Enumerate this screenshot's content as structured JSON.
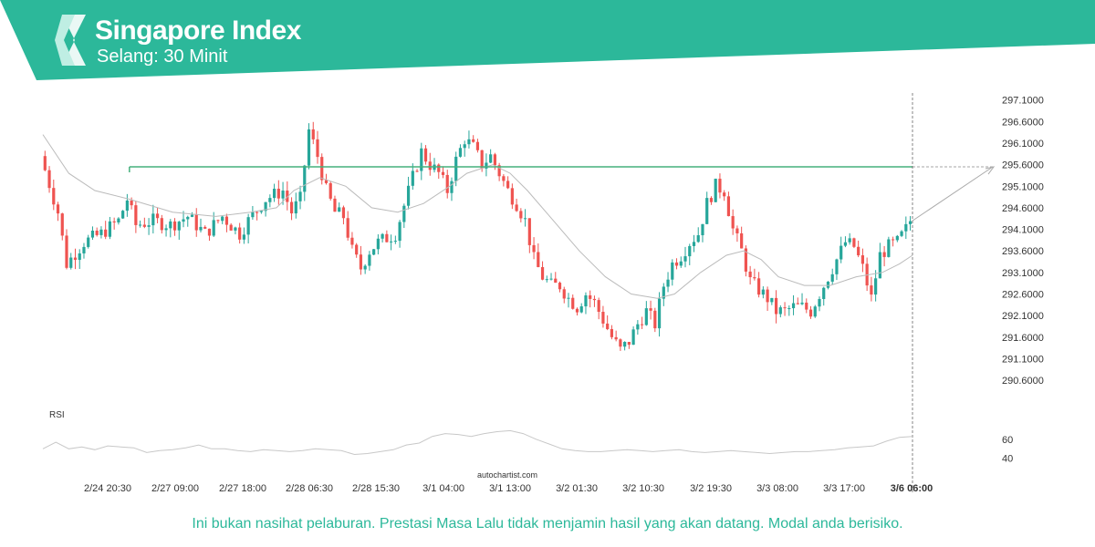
{
  "header": {
    "title": "Singapore Index",
    "subtitle": "Selang: 30 Minit",
    "brand_color": "#2cb89a",
    "logo_icon": "autochartist-s-logo-icon"
  },
  "chart_data": {
    "type": "candlestick",
    "price_panel": {
      "ylim": [
        290.2,
        297.2
      ],
      "yticks": [
        "297.1000",
        "296.6000",
        "296.1000",
        "295.6000",
        "295.1000",
        "294.6000",
        "294.1000",
        "293.6000",
        "293.1000",
        "292.6000",
        "292.1000",
        "291.6000",
        "291.1000",
        "290.6000"
      ],
      "resistance_level": 295.55,
      "up_color": "#26a69a",
      "down_color": "#ef5350",
      "forecast_target": 295.55
    },
    "rsi_panel": {
      "label": "RSI",
      "yticks": [
        "60",
        "40"
      ],
      "ylim": [
        33,
        79
      ]
    },
    "x_labels": [
      "2/24 20:30",
      "2/27 09:00",
      "2/27 18:00",
      "2/28 06:30",
      "2/28 15:30",
      "3/1 04:00",
      "3/1 13:00",
      "3/2 01:30",
      "3/2 10:30",
      "3/2 19:30",
      "3/3 08:00",
      "3/3 17:00",
      "3/6 06:00"
    ],
    "last_x_label": "3/6 06:00",
    "close_path": [
      [
        0,
        295.8
      ],
      [
        4,
        294.5
      ],
      [
        6,
        293.3
      ],
      [
        10,
        293.8
      ],
      [
        14,
        294.0
      ],
      [
        18,
        294.3
      ],
      [
        20,
        294.8
      ],
      [
        22,
        294.2
      ],
      [
        26,
        294.3
      ],
      [
        30,
        294.2
      ],
      [
        34,
        294.4
      ],
      [
        38,
        294.0
      ],
      [
        42,
        294.4
      ],
      [
        46,
        294.0
      ],
      [
        48,
        294.3
      ],
      [
        52,
        294.8
      ],
      [
        56,
        295.0
      ],
      [
        58,
        294.5
      ],
      [
        60,
        294.8
      ],
      [
        62,
        296.4
      ],
      [
        64,
        295.8
      ],
      [
        66,
        295.0
      ],
      [
        68,
        294.5
      ],
      [
        70,
        294.4
      ],
      [
        72,
        293.6
      ],
      [
        74,
        293.2
      ],
      [
        76,
        293.6
      ],
      [
        78,
        293.8
      ],
      [
        82,
        294.0
      ],
      [
        86,
        295.3
      ],
      [
        88,
        295.9
      ],
      [
        90,
        295.6
      ],
      [
        92,
        295.4
      ],
      [
        94,
        295.0
      ],
      [
        96,
        295.7
      ],
      [
        98,
        296.2
      ],
      [
        100,
        296.0
      ],
      [
        102,
        295.6
      ],
      [
        104,
        295.8
      ],
      [
        106,
        295.4
      ],
      [
        108,
        295.0
      ],
      [
        110,
        294.7
      ],
      [
        112,
        294.3
      ],
      [
        114,
        293.4
      ],
      [
        116,
        293.0
      ],
      [
        118,
        292.8
      ],
      [
        120,
        292.8
      ],
      [
        122,
        292.5
      ],
      [
        124,
        292.3
      ],
      [
        126,
        292.6
      ],
      [
        128,
        292.4
      ],
      [
        130,
        292.0
      ],
      [
        132,
        291.6
      ],
      [
        134,
        291.3
      ],
      [
        136,
        291.5
      ],
      [
        138,
        291.9
      ],
      [
        140,
        292.2
      ],
      [
        142,
        291.9
      ],
      [
        144,
        292.8
      ],
      [
        146,
        293.3
      ],
      [
        148,
        293.5
      ],
      [
        150,
        293.8
      ],
      [
        152,
        294.0
      ],
      [
        154,
        294.7
      ],
      [
        156,
        295.1
      ],
      [
        158,
        295.0
      ],
      [
        160,
        294.1
      ],
      [
        162,
        293.6
      ],
      [
        164,
        292.9
      ],
      [
        166,
        292.7
      ],
      [
        168,
        292.5
      ],
      [
        170,
        292.2
      ],
      [
        172,
        292.2
      ],
      [
        174,
        292.3
      ],
      [
        176,
        292.3
      ],
      [
        178,
        292.2
      ],
      [
        180,
        292.6
      ],
      [
        182,
        293.0
      ],
      [
        184,
        293.4
      ],
      [
        186,
        293.8
      ],
      [
        188,
        293.7
      ],
      [
        190,
        293.2
      ],
      [
        192,
        292.5
      ],
      [
        194,
        293.5
      ],
      [
        196,
        293.7
      ],
      [
        198,
        293.8
      ],
      [
        200,
        294.1
      ],
      [
        201,
        294.3
      ]
    ],
    "ma_path": [
      [
        0,
        296.3
      ],
      [
        6,
        295.4
      ],
      [
        12,
        295.0
      ],
      [
        20,
        294.8
      ],
      [
        30,
        294.5
      ],
      [
        40,
        294.4
      ],
      [
        48,
        294.5
      ],
      [
        54,
        294.6
      ],
      [
        58,
        295.0
      ],
      [
        64,
        295.3
      ],
      [
        70,
        295.1
      ],
      [
        76,
        294.6
      ],
      [
        82,
        294.5
      ],
      [
        88,
        294.7
      ],
      [
        94,
        295.1
      ],
      [
        98,
        295.4
      ],
      [
        104,
        295.6
      ],
      [
        108,
        295.4
      ],
      [
        112,
        295.0
      ],
      [
        118,
        294.3
      ],
      [
        124,
        293.6
      ],
      [
        130,
        293.0
      ],
      [
        136,
        292.6
      ],
      [
        142,
        292.5
      ],
      [
        146,
        292.6
      ],
      [
        152,
        293.1
      ],
      [
        158,
        293.5
      ],
      [
        162,
        293.6
      ],
      [
        166,
        293.4
      ],
      [
        170,
        293.0
      ],
      [
        176,
        292.8
      ],
      [
        182,
        292.8
      ],
      [
        188,
        293.0
      ],
      [
        194,
        293.1
      ],
      [
        198,
        293.3
      ],
      [
        201,
        293.5
      ]
    ],
    "rsi_path": [
      [
        0,
        50
      ],
      [
        3,
        57
      ],
      [
        6,
        50
      ],
      [
        9,
        52
      ],
      [
        12,
        49
      ],
      [
        15,
        53
      ],
      [
        18,
        52
      ],
      [
        21,
        51
      ],
      [
        24,
        46
      ],
      [
        27,
        48
      ],
      [
        30,
        49
      ],
      [
        33,
        51
      ],
      [
        36,
        54
      ],
      [
        39,
        50
      ],
      [
        42,
        50
      ],
      [
        45,
        48
      ],
      [
        48,
        47
      ],
      [
        51,
        49
      ],
      [
        54,
        48
      ],
      [
        57,
        47
      ],
      [
        60,
        48
      ],
      [
        63,
        50
      ],
      [
        66,
        49
      ],
      [
        69,
        48
      ],
      [
        72,
        44
      ],
      [
        75,
        45
      ],
      [
        78,
        47
      ],
      [
        81,
        49
      ],
      [
        84,
        54
      ],
      [
        87,
        56
      ],
      [
        90,
        63
      ],
      [
        93,
        66
      ],
      [
        96,
        65
      ],
      [
        99,
        63
      ],
      [
        102,
        66
      ],
      [
        105,
        68
      ],
      [
        108,
        69
      ],
      [
        111,
        66
      ],
      [
        114,
        60
      ],
      [
        117,
        55
      ],
      [
        120,
        50
      ],
      [
        123,
        48
      ],
      [
        126,
        47
      ],
      [
        129,
        47
      ],
      [
        132,
        48
      ],
      [
        135,
        49
      ],
      [
        138,
        48
      ],
      [
        141,
        47
      ],
      [
        144,
        48
      ],
      [
        147,
        49
      ],
      [
        150,
        47
      ],
      [
        153,
        46
      ],
      [
        156,
        47
      ],
      [
        159,
        48
      ],
      [
        162,
        47
      ],
      [
        165,
        46
      ],
      [
        168,
        45
      ],
      [
        171,
        46
      ],
      [
        174,
        47
      ],
      [
        177,
        47
      ],
      [
        180,
        48
      ],
      [
        183,
        49
      ],
      [
        186,
        51
      ],
      [
        189,
        52
      ],
      [
        192,
        53
      ],
      [
        195,
        58
      ],
      [
        198,
        62
      ],
      [
        201,
        63
      ]
    ]
  },
  "watermark": "autochartist.com",
  "disclaimer": "Ini bukan nasihat pelaburan. Prestasi Masa Lalu tidak menjamin hasil yang akan datang. Modal anda berisiko."
}
